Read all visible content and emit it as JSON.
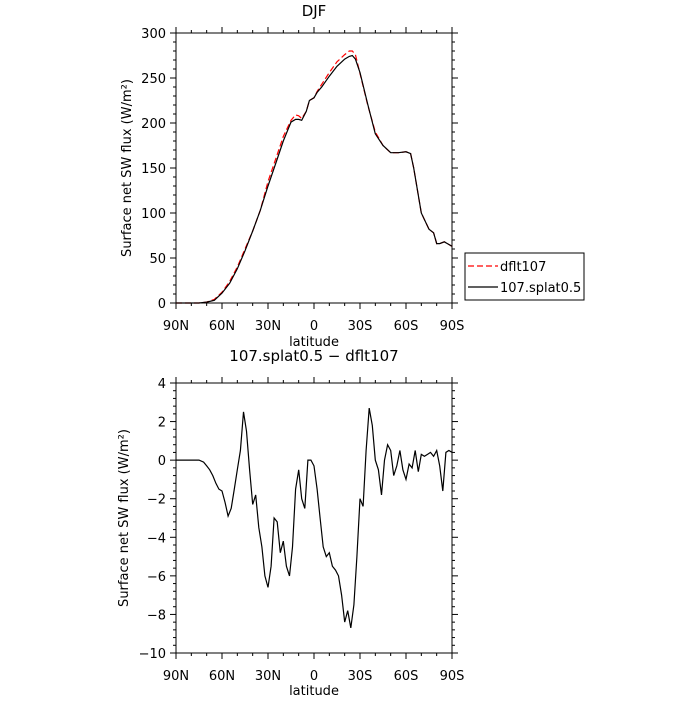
{
  "chart_data": [
    {
      "type": "line",
      "title": "DJF",
      "xlabel": "latitude",
      "ylabel": "Surface net SW flux (W/m²)",
      "x_tick_labels": [
        "90N",
        "60N",
        "30N",
        "0",
        "30S",
        "60S",
        "90S"
      ],
      "x_tick_values": [
        90,
        60,
        30,
        0,
        -30,
        -60,
        -90
      ],
      "xlim": [
        90,
        -90
      ],
      "ylim": [
        0,
        300
      ],
      "y_ticks": [
        0,
        50,
        100,
        150,
        200,
        250,
        300
      ],
      "legend_position": "outside-right-bottom",
      "series": [
        {
          "name": "dflt107",
          "color": "#ff0000",
          "style": "dashed",
          "x": [
            90,
            80,
            75,
            70,
            65,
            60,
            55,
            50,
            45,
            40,
            35,
            30,
            25,
            20,
            15,
            12,
            10,
            8,
            5,
            3,
            0,
            -2,
            -5,
            -10,
            -15,
            -20,
            -23,
            -25,
            -27,
            -30,
            -35,
            -40,
            -45,
            -50,
            -55,
            -60,
            -63,
            -65,
            -70,
            -75,
            -78,
            -80,
            -82,
            -85,
            -88,
            -90
          ],
          "y": [
            0,
            0,
            0,
            1,
            4,
            12,
            24,
            40,
            60,
            80,
            103,
            135,
            160,
            185,
            203,
            209,
            208,
            205,
            213,
            225,
            228,
            235,
            243,
            256,
            268,
            276,
            280,
            280,
            276,
            255,
            220,
            190,
            175,
            167,
            167,
            168,
            166,
            150,
            100,
            82,
            78,
            66,
            66,
            68,
            65,
            63
          ]
        },
        {
          "name": "107.splat0.5",
          "color": "#000000",
          "style": "solid",
          "x": [
            90,
            80,
            75,
            70,
            65,
            60,
            55,
            50,
            45,
            40,
            35,
            30,
            25,
            20,
            15,
            12,
            10,
            8,
            5,
            3,
            0,
            -2,
            -5,
            -10,
            -15,
            -20,
            -23,
            -25,
            -27,
            -30,
            -35,
            -40,
            -45,
            -50,
            -55,
            -60,
            -63,
            -65,
            -70,
            -75,
            -78,
            -80,
            -82,
            -85,
            -88,
            -90
          ],
          "y": [
            0,
            0,
            0,
            1,
            3,
            11,
            22,
            38,
            58,
            80,
            103,
            130,
            155,
            180,
            201,
            204,
            204,
            203,
            213,
            225,
            228,
            234,
            240,
            252,
            263,
            271,
            274,
            275,
            271,
            256,
            221,
            188,
            175,
            167,
            167,
            168,
            166,
            150,
            100,
            82,
            78,
            66,
            66,
            68,
            65,
            63
          ]
        }
      ]
    },
    {
      "type": "line",
      "title": "107.splat0.5 − dflt107",
      "xlabel": "latitude",
      "ylabel": "Surface net SW flux (W/m²)",
      "x_tick_labels": [
        "90N",
        "60N",
        "30N",
        "0",
        "30S",
        "60S",
        "90S"
      ],
      "x_tick_values": [
        90,
        60,
        30,
        0,
        -30,
        -60,
        -90
      ],
      "xlim": [
        90,
        -90
      ],
      "ylim": [
        -10,
        4
      ],
      "y_ticks": [
        -10,
        -8,
        -6,
        -4,
        -2,
        0,
        2,
        4
      ],
      "series": [
        {
          "color": "#000000",
          "style": "solid",
          "x": [
            90,
            80,
            75,
            72,
            70,
            68,
            66,
            64,
            62,
            60,
            58,
            56,
            54,
            52,
            50,
            48,
            46,
            44,
            42,
            40,
            38,
            36,
            34,
            32,
            30,
            28,
            26,
            24,
            22,
            20,
            18,
            16,
            14,
            12,
            10,
            8,
            6,
            4,
            2,
            0,
            -2,
            -4,
            -6,
            -8,
            -10,
            -12,
            -14,
            -16,
            -18,
            -20,
            -22,
            -24,
            -26,
            -28,
            -30,
            -32,
            -34,
            -36,
            -38,
            -40,
            -42,
            -44,
            -46,
            -48,
            -50,
            -52,
            -54,
            -56,
            -58,
            -60,
            -62,
            -64,
            -66,
            -68,
            -70,
            -72,
            -74,
            -76,
            -78,
            -80,
            -82,
            -84,
            -86,
            -88,
            -90
          ],
          "y": [
            0,
            0,
            0,
            -0.1,
            -0.3,
            -0.5,
            -0.8,
            -1.2,
            -1.5,
            -1.6,
            -2.2,
            -2.9,
            -2.5,
            -1.5,
            -0.5,
            0.5,
            2.5,
            1.5,
            -0.5,
            -2.3,
            -1.8,
            -3.5,
            -4.5,
            -6.0,
            -6.6,
            -5.5,
            -3.0,
            -3.2,
            -4.8,
            -4.2,
            -5.5,
            -6.0,
            -4.5,
            -1.5,
            -0.5,
            -2.0,
            -2.5,
            0,
            0,
            -0.3,
            -1.5,
            -3.0,
            -4.5,
            -5.0,
            -4.8,
            -5.5,
            -5.7,
            -6.0,
            -7.0,
            -8.4,
            -7.8,
            -8.7,
            -7.5,
            -5.0,
            -2.0,
            -2.4,
            0.5,
            2.7,
            1.8,
            0,
            -0.5,
            -1.8,
            0,
            0.8,
            0.5,
            -0.8,
            -0.3,
            0.5,
            -0.5,
            -1.0,
            -0.2,
            -0.4,
            0.5,
            -0.6,
            0.3,
            0.2,
            0.3,
            0.4,
            0.2,
            0.5,
            -0.3,
            -1.6,
            0.4,
            0.5,
            0.4
          ]
        }
      ]
    }
  ]
}
